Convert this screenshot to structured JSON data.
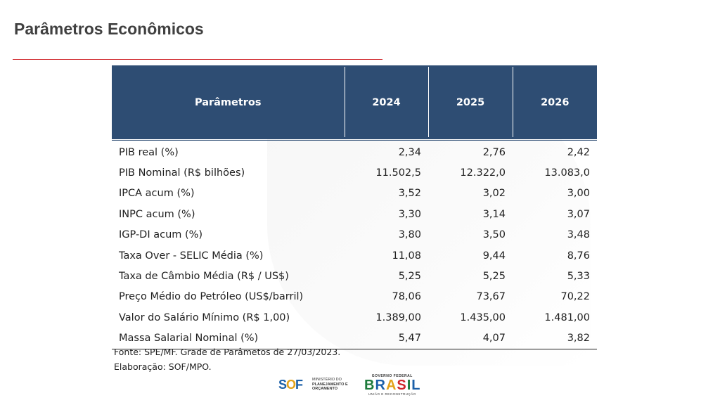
{
  "title": "Parâmetros Econômicos",
  "table": {
    "headers": [
      "Parâmetros",
      "2024",
      "2025",
      "2026"
    ],
    "rows": [
      [
        "PIB real (%)",
        "2,34",
        "2,76",
        "2,42"
      ],
      [
        "PIB Nominal (R$ bilhões)",
        "11.502,5",
        "12.322,0",
        "13.083,0"
      ],
      [
        "IPCA acum (%)",
        "3,52",
        "3,02",
        "3,00"
      ],
      [
        "INPC acum (%)",
        "3,30",
        "3,14",
        "3,07"
      ],
      [
        "IGP-DI acum (%)",
        "3,80",
        "3,50",
        "3,48"
      ],
      [
        "Taxa Over - SELIC Média (%)",
        "11,08",
        "9,44",
        "8,76"
      ],
      [
        "Taxa de Câmbio Média (R$ / US$)",
        "5,25",
        "5,25",
        "5,33"
      ],
      [
        "Preço Médio do Petróleo (US$/barril)",
        "78,06",
        "73,67",
        "70,22"
      ],
      [
        "Valor do Salário Mínimo (R$ 1,00)",
        "1.389,00",
        "1.435,00",
        "1.481,00"
      ],
      [
        "Massa Salarial Nominal (%)",
        "5,47",
        "4,07",
        "3,82"
      ]
    ]
  },
  "notes": {
    "source": "Fonte: SPE/MF. Grade de Parâmetos de 27/03/2023.",
    "elaboration": "Elaboração: SOF/MPO."
  },
  "footer": {
    "sof_logo": "SOF",
    "ministry_line1": "MINISTÉRIO DO",
    "ministry_line2": "PLANEJAMENTO E",
    "ministry_line3": "ORÇAMENTO",
    "gov_top": "GOVERNO FEDERAL",
    "gov_brasil": "BRASIL",
    "gov_bottom": "UNIÃO E RECONSTRUÇÃO"
  },
  "colors": {
    "header_bg": "#2e4d73",
    "title_rule": "#d0262b",
    "title_text": "#404040"
  }
}
